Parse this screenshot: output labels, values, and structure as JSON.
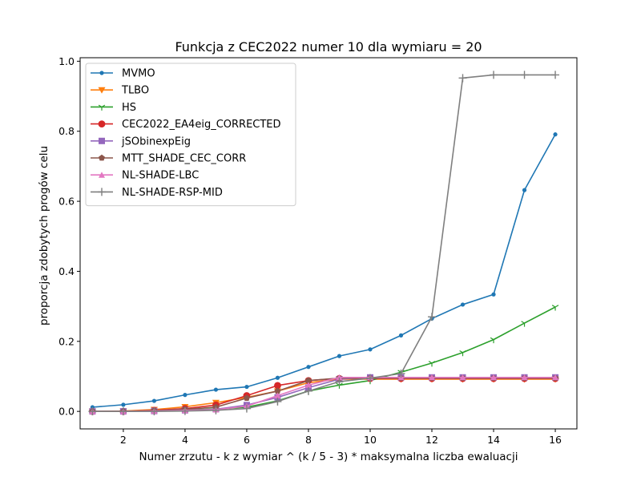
{
  "chart_data": {
    "type": "line",
    "title": "Funkcja z CEC2022 numer 10 dla wymiaru = 20",
    "xlabel": "Numer zrzutu - k z wymiar ^ (k / 5 - 3) * maksymalna liczba ewaluacji",
    "ylabel": "proporcja zdobytych progów celu",
    "xlim": [
      0.6,
      16.7
    ],
    "ylim": [
      -0.05,
      1.01
    ],
    "xticks": [
      2,
      4,
      6,
      8,
      10,
      12,
      14,
      16
    ],
    "yticks": [
      0.0,
      0.2,
      0.4,
      0.6,
      0.8,
      1.0
    ],
    "ytick_labels": [
      "0.0",
      "0.2",
      "0.4",
      "0.6",
      "0.8",
      "1.0"
    ],
    "grid": false,
    "legend_position": "top-left",
    "x": [
      1,
      2,
      3,
      4,
      5,
      6,
      7,
      8,
      9,
      10,
      11,
      12,
      13,
      14,
      15,
      16
    ],
    "series": [
      {
        "name": "MVMO",
        "color": "#1f77b4",
        "marker": "circle",
        "values": [
          0.012,
          0.019,
          0.03,
          0.047,
          0.062,
          0.07,
          0.096,
          0.127,
          0.158,
          0.177,
          0.217,
          0.265,
          0.305,
          0.334,
          0.632,
          0.791
        ]
      },
      {
        "name": "TLBO",
        "color": "#ff7f0e",
        "marker": "triangle-down",
        "values": [
          0.0,
          0.001,
          0.005,
          0.013,
          0.025,
          0.04,
          0.058,
          0.082,
          0.092,
          0.092,
          0.092,
          0.092,
          0.092,
          0.092,
          0.092,
          0.092
        ]
      },
      {
        "name": "HS",
        "color": "#2ca02c",
        "marker": "tri-down",
        "values": [
          0.0,
          0.0,
          0.002,
          0.004,
          0.007,
          0.012,
          0.03,
          0.058,
          0.075,
          0.088,
          0.112,
          0.138,
          0.168,
          0.205,
          0.252,
          0.298
        ]
      },
      {
        "name": "CEC2022_EA4eig_CORRECTED",
        "color": "#d62728",
        "marker": "circle-large",
        "values": [
          0.0,
          0.0,
          0.003,
          0.008,
          0.018,
          0.045,
          0.074,
          0.088,
          0.094,
          0.094,
          0.094,
          0.094,
          0.094,
          0.094,
          0.094,
          0.094
        ]
      },
      {
        "name": "jSObinexpEig",
        "color": "#9467bd",
        "marker": "square",
        "values": [
          0.0,
          0.0,
          0.001,
          0.003,
          0.006,
          0.018,
          0.04,
          0.068,
          0.092,
          0.097,
          0.097,
          0.097,
          0.097,
          0.097,
          0.097,
          0.097
        ]
      },
      {
        "name": "MTT_SHADE_CEC_CORR",
        "color": "#8c564b",
        "marker": "pentagon",
        "values": [
          0.0,
          0.0,
          0.002,
          0.006,
          0.012,
          0.038,
          0.058,
          0.088,
          0.095,
          0.095,
          0.095,
          0.095,
          0.095,
          0.095,
          0.095,
          0.095
        ]
      },
      {
        "name": "NL-SHADE-LBC",
        "color": "#e377c2",
        "marker": "triangle-up",
        "values": [
          0.0,
          0.0,
          0.001,
          0.003,
          0.005,
          0.015,
          0.045,
          0.075,
          0.097,
          0.097,
          0.097,
          0.097,
          0.097,
          0.097,
          0.097,
          0.097
        ]
      },
      {
        "name": "NL-SHADE-RSP-MID",
        "color": "#7f7f7f",
        "marker": "plus",
        "values": [
          0.0,
          0.0,
          0.0,
          0.001,
          0.003,
          0.008,
          0.028,
          0.058,
          0.085,
          0.095,
          0.108,
          0.27,
          0.952,
          0.961,
          0.961,
          0.961
        ]
      }
    ]
  }
}
